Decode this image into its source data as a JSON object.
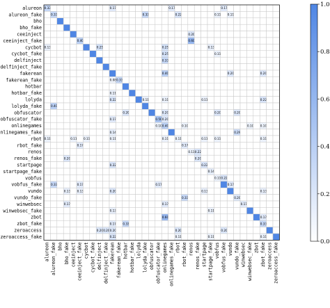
{
  "chart_data": {
    "type": "heatmap",
    "labels": [
      "alureon",
      "alureon_fake",
      "bho",
      "bho_fake",
      "ceeinject",
      "ceeinject_fake",
      "cycbot",
      "cycbot_fake",
      "delfinject",
      "delfinject_fake",
      "fakerean",
      "fakerean_fake",
      "hotbar",
      "hotbar_fake",
      "lolyda",
      "lolyda_fake",
      "obfuscator",
      "obfuscator_fake",
      "onlinegames",
      "onlinegames_fake",
      "rbot",
      "rbot_fake",
      "renos",
      "renos_fake",
      "startpage",
      "startpage_fake",
      "vobfus",
      "vobfus_fake",
      "vundo",
      "vundo_fake",
      "winwebsec",
      "winwebsec_fake",
      "zbot",
      "zbot_fake",
      "zeroaccess",
      "zeroaccess_fake"
    ],
    "diagonal_value": 1.0,
    "off_diagonal": [
      [
        0,
        0,
        "0.33"
      ],
      [
        0,
        10,
        "0.17"
      ],
      [
        0,
        19,
        "0.17"
      ],
      [
        0,
        27,
        "0.17"
      ],
      [
        1,
        1,
        "0.33"
      ],
      [
        1,
        15,
        "0.33"
      ],
      [
        1,
        20,
        "0.22"
      ],
      [
        1,
        26,
        "0.11"
      ],
      [
        1,
        28,
        "0.11"
      ],
      [
        4,
        22,
        "0.20"
      ],
      [
        5,
        5,
        "0.40"
      ],
      [
        5,
        22,
        "0.60"
      ],
      [
        6,
        0,
        "0.13"
      ],
      [
        6,
        8,
        "0.25"
      ],
      [
        6,
        18,
        "0.25"
      ],
      [
        6,
        25,
        "0.13"
      ],
      [
        7,
        18,
        "0.25"
      ],
      [
        7,
        26,
        "0.11"
      ],
      [
        8,
        18,
        "0.33"
      ],
      [
        10,
        18,
        "0.40"
      ],
      [
        10,
        28,
        "0.20"
      ],
      [
        10,
        33,
        "0.20"
      ],
      [
        11,
        11,
        "0.33"
      ],
      [
        11,
        10,
        "0.08"
      ],
      [
        13,
        10,
        "0.11"
      ],
      [
        14,
        10,
        "0.22"
      ],
      [
        14,
        15,
        "0.11"
      ],
      [
        14,
        18,
        "0.11"
      ],
      [
        14,
        24,
        "0.11"
      ],
      [
        14,
        33,
        "0.22"
      ],
      [
        15,
        1,
        "0.40"
      ],
      [
        16,
        12,
        "0.20"
      ],
      [
        16,
        18,
        "0.20"
      ],
      [
        16,
        26,
        "0.20"
      ],
      [
        16,
        29,
        "0.20"
      ],
      [
        17,
        10,
        "0.17"
      ],
      [
        17,
        17,
        "0.50"
      ],
      [
        17,
        18,
        "0.20"
      ],
      [
        18,
        17,
        "0.10"
      ],
      [
        18,
        18,
        "0.40"
      ],
      [
        18,
        21,
        "0.10"
      ],
      [
        18,
        31,
        "0.10"
      ],
      [
        18,
        33,
        "0.10"
      ],
      [
        19,
        10,
        "0.14"
      ],
      [
        19,
        29,
        "0.29"
      ],
      [
        20,
        0,
        "0.11"
      ],
      [
        20,
        4,
        "0.11"
      ],
      [
        20,
        6,
        "0.11"
      ],
      [
        20,
        10,
        "0.11"
      ],
      [
        20,
        18,
        "0.11"
      ],
      [
        20,
        20,
        "0.11"
      ],
      [
        20,
        24,
        "0.11"
      ],
      [
        20,
        26,
        "0.11"
      ],
      [
        20,
        33,
        "0.11"
      ],
      [
        21,
        5,
        "0.17"
      ],
      [
        21,
        21,
        "0.17"
      ],
      [
        22,
        22,
        "0.11"
      ],
      [
        22,
        23,
        "0.22"
      ],
      [
        23,
        3,
        "0.20"
      ],
      [
        23,
        23,
        "0.20"
      ],
      [
        24,
        10,
        "0.22"
      ],
      [
        24,
        24,
        "0.22"
      ],
      [
        25,
        25,
        "0.14"
      ],
      [
        26,
        26,
        "0.11"
      ],
      [
        26,
        27,
        "0.22"
      ],
      [
        27,
        1,
        "0.33"
      ],
      [
        27,
        5,
        "0.17"
      ],
      [
        27,
        17,
        "0.17"
      ],
      [
        27,
        28,
        "0.17"
      ],
      [
        28,
        3,
        "0.13"
      ],
      [
        28,
        5,
        "0.13"
      ],
      [
        28,
        10,
        "0.20"
      ],
      [
        28,
        24,
        "0.13"
      ],
      [
        28,
        33,
        "0.13"
      ],
      [
        29,
        21,
        "0.33"
      ],
      [
        29,
        29,
        "0.20"
      ],
      [
        30,
        3,
        "0.17"
      ],
      [
        30,
        18,
        "0.17"
      ],
      [
        30,
        30,
        "0.17"
      ],
      [
        31,
        10,
        "0.13"
      ],
      [
        31,
        25,
        "0.11"
      ],
      [
        32,
        18,
        "0.60"
      ],
      [
        32,
        33,
        "0.17"
      ],
      [
        33,
        10,
        "0.17"
      ],
      [
        33,
        12,
        "0.33"
      ],
      [
        33,
        33,
        "0.33"
      ],
      [
        34,
        8,
        "0.20"
      ],
      [
        34,
        9,
        "0.20"
      ],
      [
        34,
        10,
        "0.20"
      ],
      [
        34,
        20,
        "0.20"
      ],
      [
        34,
        27,
        "0.20"
      ],
      [
        35,
        10,
        "0.22"
      ],
      [
        35,
        20,
        "0.11"
      ],
      [
        35,
        25,
        "0.11"
      ],
      [
        35,
        33,
        "0.11"
      ]
    ],
    "colorbar": {
      "min": 0.0,
      "max": 1.0,
      "ticks": [
        "0.0",
        "0.2",
        "0.4",
        "0.6",
        "0.8",
        "1.0"
      ]
    },
    "colors": {
      "low": "#ffffff",
      "high": "#4f86e4",
      "grid": "#c8c8c8"
    }
  }
}
